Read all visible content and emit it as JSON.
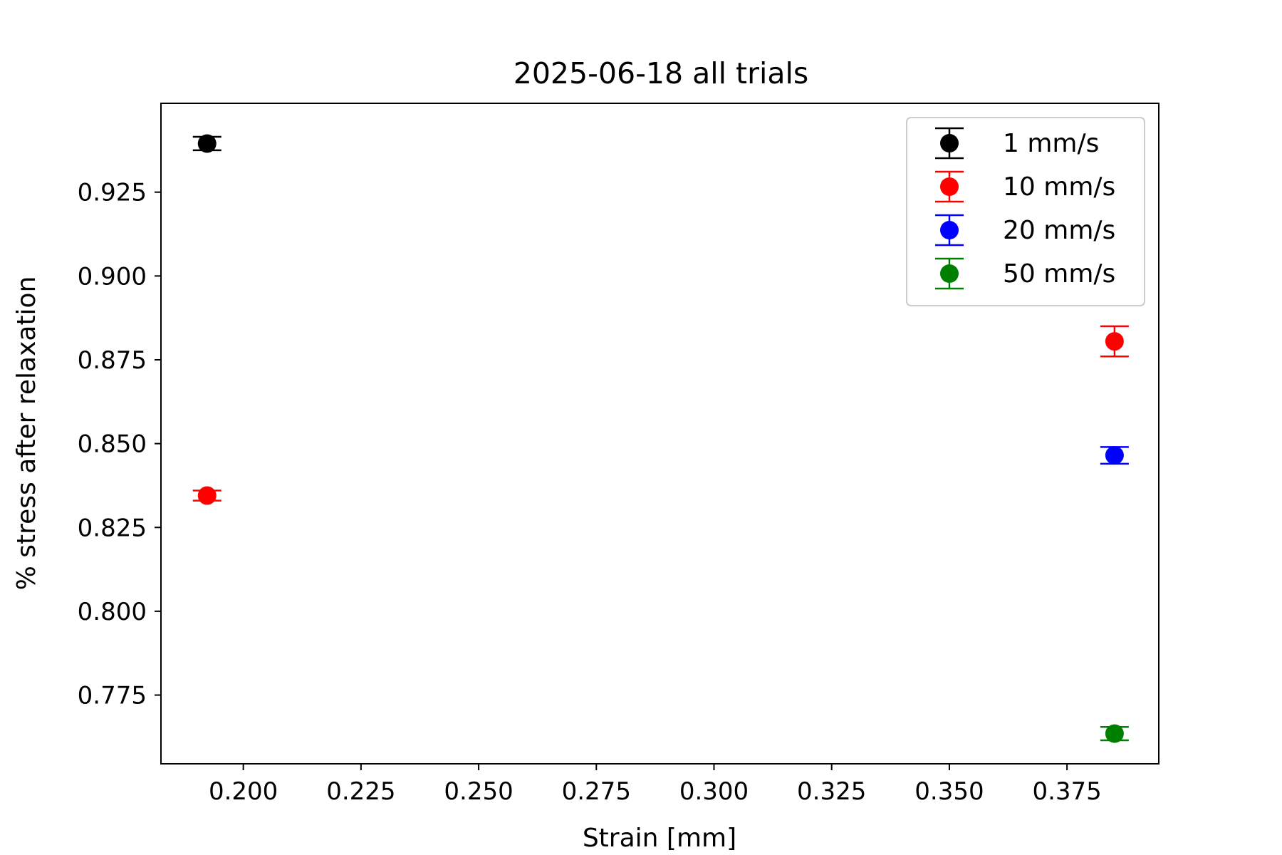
{
  "chart_data": {
    "type": "scatter",
    "title": "2025-06-18 all trials",
    "xlabel": "Strain [mm]",
    "ylabel": "% stress after relaxation",
    "xlim": [
      0.1825,
      0.3945
    ],
    "ylim": [
      0.7545,
      0.9515
    ],
    "xticks": [
      0.2,
      0.225,
      0.25,
      0.275,
      0.3,
      0.325,
      0.35,
      0.375
    ],
    "xtick_labels": [
      "0.200",
      "0.225",
      "0.250",
      "0.275",
      "0.300",
      "0.325",
      "0.350",
      "0.375"
    ],
    "yticks": [
      0.775,
      0.8,
      0.825,
      0.85,
      0.875,
      0.9,
      0.925
    ],
    "ytick_labels": [
      "0.775",
      "0.800",
      "0.825",
      "0.850",
      "0.875",
      "0.900",
      "0.925"
    ],
    "grid": false,
    "legend_position": "top-right",
    "series": [
      {
        "name": "1 mm/s",
        "color": "#000000",
        "points": [
          {
            "x": 0.1923,
            "y": 0.9395,
            "xerr": 0.0015,
            "yerr": 0.002
          }
        ]
      },
      {
        "name": "10 mm/s",
        "color": "#ff0000",
        "points": [
          {
            "x": 0.1923,
            "y": 0.8345,
            "xerr": 0.0015,
            "yerr": 0.0015
          },
          {
            "x": 0.3851,
            "y": 0.8805,
            "xerr": 0.0015,
            "yerr": 0.0045
          }
        ]
      },
      {
        "name": "20 mm/s",
        "color": "#0000ff",
        "points": [
          {
            "x": 0.3851,
            "y": 0.8465,
            "xerr": 0.0015,
            "yerr": 0.0025
          }
        ]
      },
      {
        "name": "50 mm/s",
        "color": "#008000",
        "points": [
          {
            "x": 0.3851,
            "y": 0.7635,
            "xerr": 0.0015,
            "yerr": 0.002
          }
        ]
      }
    ]
  }
}
